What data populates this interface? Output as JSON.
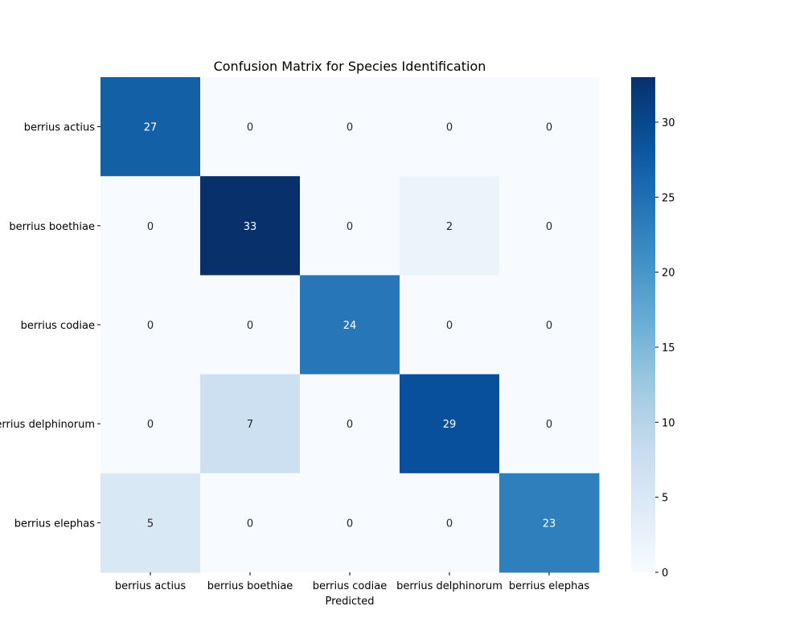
{
  "chart_data": {
    "type": "heatmap",
    "title": "Confusion Matrix for Species Identification",
    "xlabel": "Predicted",
    "ylabel": "",
    "x_categories": [
      "berrius actius",
      "berrius boethiae",
      "berrius codiae",
      "berrius delphinorum",
      "berrius elephas"
    ],
    "y_categories": [
      "berrius actius",
      "berrius boethiae",
      "berrius codiae",
      "berrius delphinorum",
      "berrius elephas"
    ],
    "matrix": [
      [
        27,
        0,
        0,
        0,
        0
      ],
      [
        0,
        33,
        0,
        2,
        0
      ],
      [
        0,
        0,
        24,
        0,
        0
      ],
      [
        0,
        7,
        0,
        29,
        0
      ],
      [
        5,
        0,
        0,
        0,
        23
      ]
    ],
    "colormap": "Blues",
    "colorbar": {
      "min": 0,
      "max": 33,
      "ticks": [
        0,
        5,
        10,
        15,
        20,
        25,
        30
      ]
    },
    "grid": false
  }
}
